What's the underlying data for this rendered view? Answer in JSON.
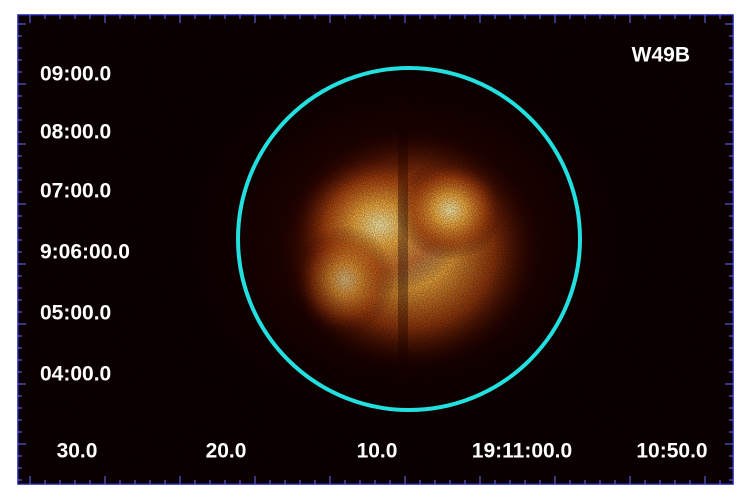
{
  "image": {
    "label": "W49B",
    "y_axis_labels": [
      "09:00.0",
      "08:00.0",
      "07:00.0",
      "9:06:00.0",
      "05:00.0",
      "04:00.0"
    ],
    "x_axis_labels": [
      "30.0",
      "20.0",
      "10.0",
      "19:11:00.0",
      "10:50.0"
    ]
  }
}
